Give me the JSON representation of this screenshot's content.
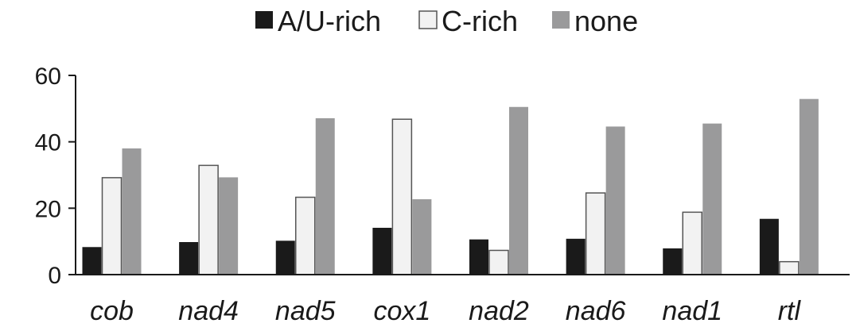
{
  "chart_data": {
    "type": "bar",
    "categories": [
      "cob",
      "nad4",
      "nad5",
      "cox1",
      "nad2",
      "nad6",
      "nad1",
      "rtl"
    ],
    "series": [
      {
        "name": "A/U-rich",
        "color": "#1a1a1a",
        "values": [
          8.3,
          9.8,
          10.2,
          14.1,
          10.6,
          10.8,
          7.9,
          16.8
        ]
      },
      {
        "name": "C-rich",
        "color": "#f2f2f2",
        "values": [
          29.2,
          32.9,
          23.3,
          46.8,
          7.3,
          24.6,
          18.8,
          3.9
        ]
      },
      {
        "name": "none",
        "color": "#9a9a9b",
        "values": [
          38.0,
          29.3,
          47.1,
          22.7,
          50.5,
          44.6,
          45.5,
          52.9
        ]
      }
    ],
    "ylim": [
      0,
      60
    ],
    "yticks": [
      0,
      20,
      40,
      60
    ],
    "legend_position": "top",
    "grid": false
  }
}
